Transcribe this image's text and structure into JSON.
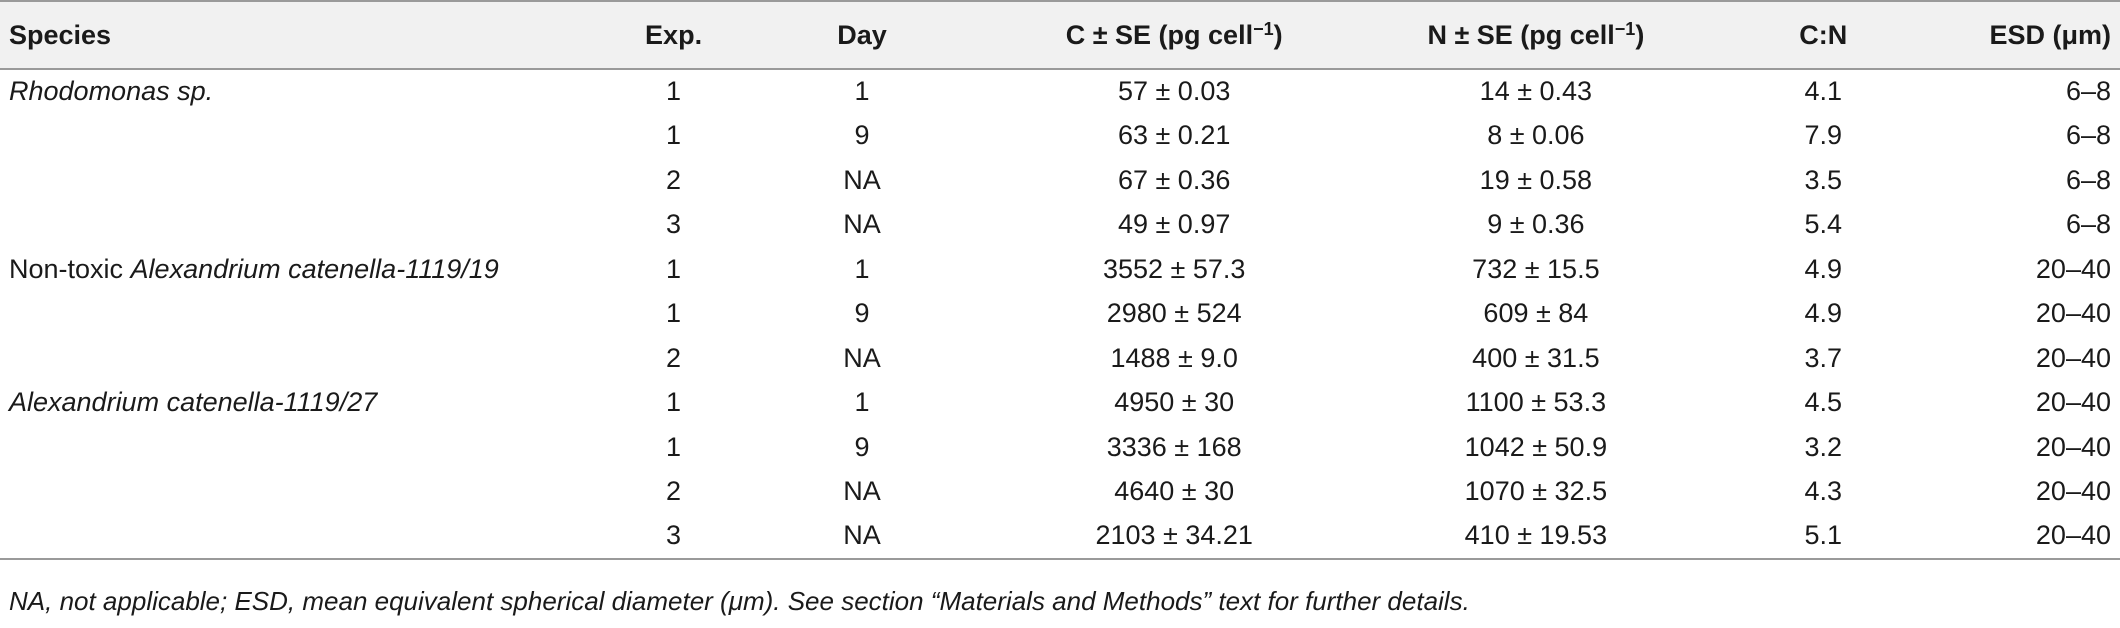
{
  "table": {
    "headers": {
      "species": "Species",
      "exp": "Exp.",
      "day": "Day",
      "c_prefix": "C ± SE (pg cell",
      "c_sup": "−1",
      "c_suffix": ")",
      "n_prefix": "N ± SE (pg cell",
      "n_sup": "−1",
      "n_suffix": ")",
      "cn": "C:N",
      "esd": "ESD (μm)"
    },
    "rows": [
      {
        "species_prefix": "",
        "species_italic": "Rhodomonas sp.",
        "exp": "1",
        "day": "1",
        "c": "57 ± 0.03",
        "n": "14 ± 0.43",
        "cn": "4.1",
        "esd": "6–8"
      },
      {
        "species_prefix": "",
        "species_italic": "",
        "exp": "1",
        "day": "9",
        "c": "63 ± 0.21",
        "n": "8 ± 0.06",
        "cn": "7.9",
        "esd": "6–8"
      },
      {
        "species_prefix": "",
        "species_italic": "",
        "exp": "2",
        "day": "NA",
        "c": "67 ± 0.36",
        "n": "19 ± 0.58",
        "cn": "3.5",
        "esd": "6–8"
      },
      {
        "species_prefix": "",
        "species_italic": "",
        "exp": "3",
        "day": "NA",
        "c": "49 ± 0.97",
        "n": "9 ± 0.36",
        "cn": "5.4",
        "esd": "6–8"
      },
      {
        "species_prefix": "Non-toxic ",
        "species_italic": "Alexandrium catenella-1119/19",
        "exp": "1",
        "day": "1",
        "c": "3552 ± 57.3",
        "n": "732 ± 15.5",
        "cn": "4.9",
        "esd": "20–40"
      },
      {
        "species_prefix": "",
        "species_italic": "",
        "exp": "1",
        "day": "9",
        "c": "2980 ± 524",
        "n": "609 ± 84",
        "cn": "4.9",
        "esd": "20–40"
      },
      {
        "species_prefix": "",
        "species_italic": "",
        "exp": "2",
        "day": "NA",
        "c": "1488 ± 9.0",
        "n": "400 ± 31.5",
        "cn": "3.7",
        "esd": "20–40"
      },
      {
        "species_prefix": "",
        "species_italic": "Alexandrium catenella-1119/27",
        "exp": "1",
        "day": "1",
        "c": "4950 ± 30",
        "n": "1100 ± 53.3",
        "cn": "4.5",
        "esd": "20–40"
      },
      {
        "species_prefix": "",
        "species_italic": "",
        "exp": "1",
        "day": "9",
        "c": "3336 ± 168",
        "n": "1042 ± 50.9",
        "cn": "3.2",
        "esd": "20–40"
      },
      {
        "species_prefix": "",
        "species_italic": "",
        "exp": "2",
        "day": "NA",
        "c": "4640 ± 30",
        "n": "1070 ± 32.5",
        "cn": "4.3",
        "esd": "20–40"
      },
      {
        "species_prefix": "",
        "species_italic": "",
        "exp": "3",
        "day": "NA",
        "c": "2103 ± 34.21",
        "n": "410 ± 19.53",
        "cn": "5.1",
        "esd": "20–40"
      }
    ]
  },
  "footnote": "NA, not applicable; ESD, mean equivalent spherical diameter (μm). See section “Materials and Methods” text for further details."
}
